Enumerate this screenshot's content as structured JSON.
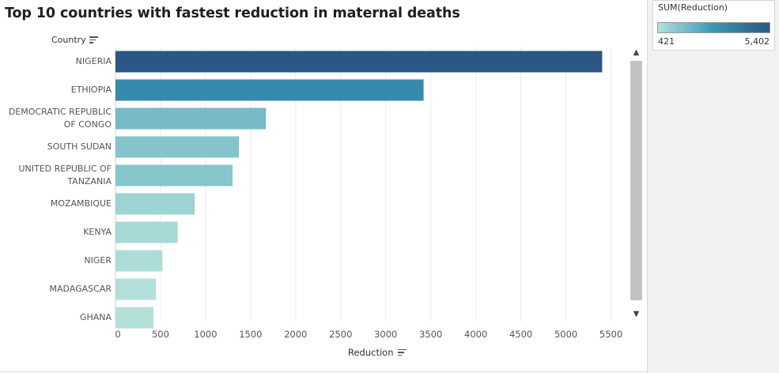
{
  "title": "Top 10 countries with fastest reduction in maternal deaths",
  "chart_data": {
    "type": "bar",
    "orientation": "horizontal",
    "title": "Top 10 countries with fastest reduction in maternal deaths",
    "ylabel": "Country",
    "xlabel": "Reduction",
    "categories": [
      [
        "NIGERIA"
      ],
      [
        "ETHIOPIA"
      ],
      [
        "DEMOCRATIC REPUBLIC",
        "OF CONGO"
      ],
      [
        "SOUTH SUDAN"
      ],
      [
        "UNITED REPUBLIC OF",
        "TANZANIA"
      ],
      [
        "MOZAMBIQUE"
      ],
      [
        "KENYA"
      ],
      [
        "NIGER"
      ],
      [
        "MADAGASCAR"
      ],
      [
        "GHANA"
      ]
    ],
    "values": [
      5402,
      3420,
      1670,
      1370,
      1300,
      880,
      690,
      520,
      450,
      421
    ],
    "xlim": [
      0,
      5750
    ],
    "xticks": [
      0,
      500,
      1000,
      1500,
      2000,
      2500,
      3000,
      3500,
      4000,
      4500,
      5000,
      5500
    ],
    "grid": true,
    "color_min": "#b3e0d9",
    "color_max": "#2a5783"
  },
  "legend": {
    "title": "SUM(Reduction)",
    "min_label": "421",
    "max_label": "5,402",
    "min_color": "#b3e0d9",
    "mid_color": "#3a97b6",
    "max_color": "#2a5783"
  },
  "scrollbar": {
    "up_icon": "▲",
    "down_icon": "▼"
  }
}
